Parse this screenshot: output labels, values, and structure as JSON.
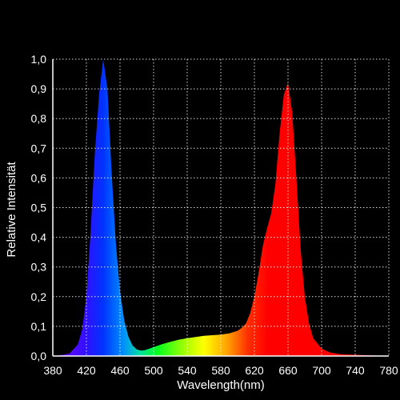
{
  "chart_data": {
    "type": "area",
    "title": "",
    "xlabel": "Wavelength(nm)",
    "ylabel": "Relative Intensität",
    "xlim": [
      380,
      780
    ],
    "ylim": [
      0,
      1
    ],
    "x_ticks": [
      "380",
      "420",
      "460",
      "500",
      "540",
      "580",
      "620",
      "660",
      "700",
      "740",
      "780"
    ],
    "y_ticks": [
      "0,0",
      "0,1",
      "0,2",
      "0,3",
      "0,4",
      "0,5",
      "0,6",
      "0,7",
      "0,8",
      "0,9",
      "1,0"
    ],
    "grid": true,
    "background": "#000000",
    "grid_color": "#ffffff",
    "series": [
      {
        "x": [
          380,
          390,
          400,
          410,
          415,
          420,
          425,
          430,
          435,
          440,
          445,
          450,
          455,
          460,
          465,
          470,
          475,
          480,
          485,
          490,
          495,
          500,
          510,
          520,
          530,
          540,
          550,
          560,
          570,
          580,
          590,
          600,
          605,
          610,
          615,
          620,
          625,
          630,
          635,
          640,
          645,
          650,
          655,
          660,
          665,
          670,
          675,
          680,
          685,
          690,
          700,
          710,
          720,
          730,
          740,
          750,
          760,
          770,
          780
        ],
        "values": [
          0.0,
          0.003,
          0.008,
          0.04,
          0.09,
          0.2,
          0.42,
          0.68,
          0.88,
          1.0,
          0.9,
          0.62,
          0.38,
          0.22,
          0.12,
          0.065,
          0.035,
          0.022,
          0.018,
          0.02,
          0.025,
          0.03,
          0.04,
          0.048,
          0.055,
          0.06,
          0.064,
          0.068,
          0.07,
          0.072,
          0.076,
          0.085,
          0.095,
          0.11,
          0.145,
          0.2,
          0.28,
          0.37,
          0.43,
          0.48,
          0.58,
          0.75,
          0.88,
          0.92,
          0.82,
          0.6,
          0.36,
          0.2,
          0.11,
          0.06,
          0.025,
          0.012,
          0.007,
          0.005,
          0.004,
          0.003,
          0.002,
          0.001,
          0.0
        ]
      }
    ]
  }
}
